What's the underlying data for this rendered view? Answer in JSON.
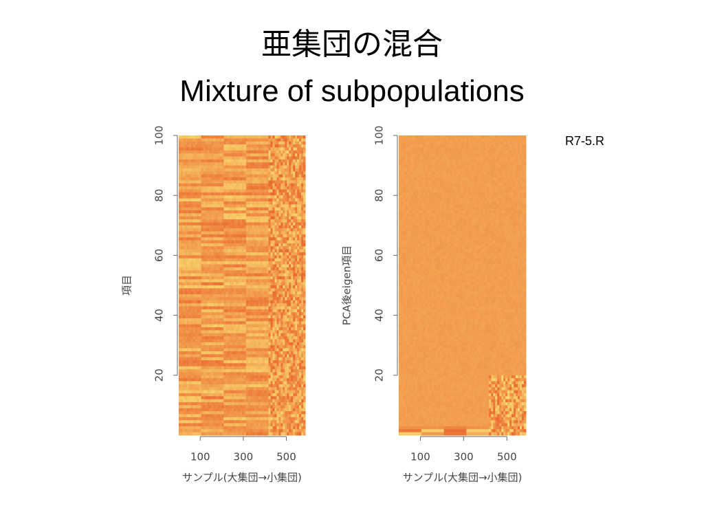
{
  "title": "亜集団の混合",
  "subtitle": "Mixture of subpopulations",
  "note": "R7-5.R",
  "chart_data": [
    {
      "type": "heatmap",
      "xlabel": "サンプル(大集団→小集団)",
      "ylabel": "項目",
      "xlim": [
        0,
        588
      ],
      "ylim": [
        0,
        100
      ],
      "xticks": [
        100,
        300,
        500
      ],
      "yticks": [
        20,
        40,
        60,
        80,
        100
      ]
    },
    {
      "type": "heatmap",
      "xlabel": "サンプル(大集団→小集団)",
      "ylabel": "PCA後eigen項目",
      "xlim": [
        0,
        588
      ],
      "ylim": [
        0,
        100
      ],
      "xticks": [
        100,
        300,
        500
      ],
      "yticks": [
        20,
        40,
        60,
        80,
        100
      ]
    }
  ]
}
